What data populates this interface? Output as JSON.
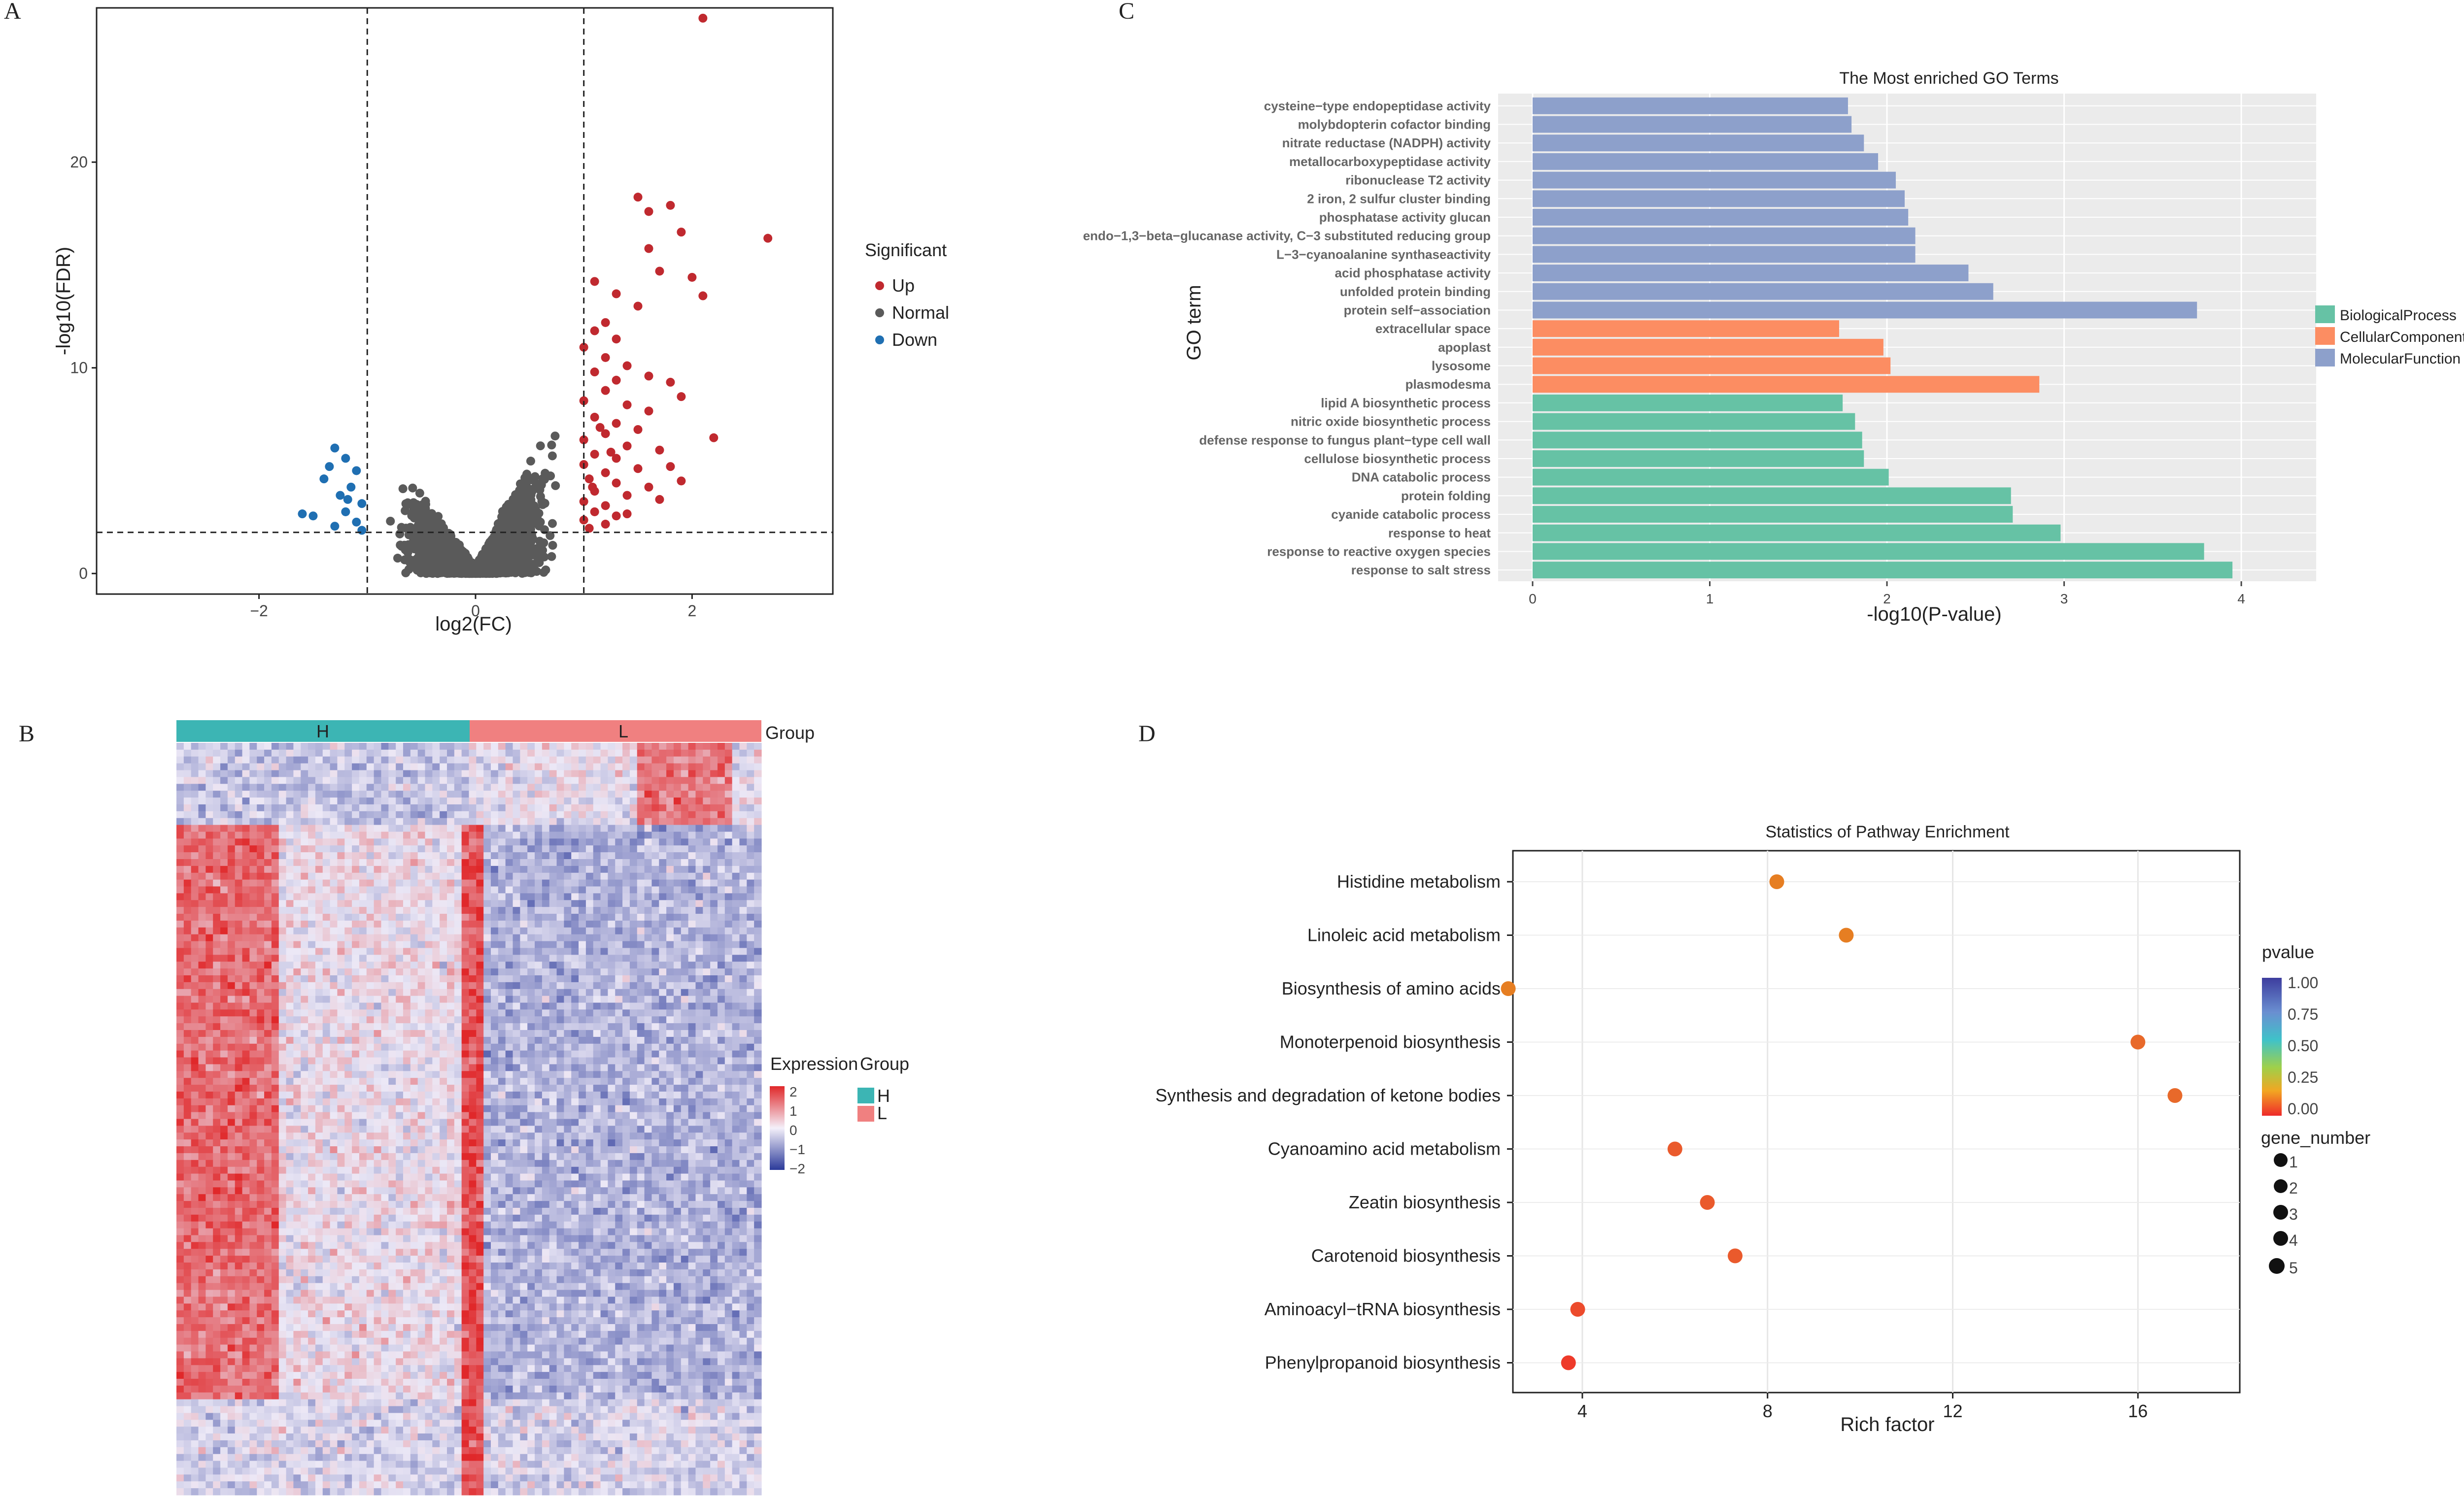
{
  "panels": {
    "a": "A",
    "b": "B",
    "c": "C",
    "d": "D"
  },
  "chart_data": [
    {
      "panel": "A",
      "type": "scatter",
      "title": "",
      "xlabel": "log2(FC)",
      "ylabel": "-log10(FDR)",
      "xlim": [
        -3.5,
        3.3
      ],
      "ylim": [
        -1,
        27.5
      ],
      "xticks": [
        -2,
        0,
        2
      ],
      "yticks": [
        0,
        10,
        20
      ],
      "vlines": [
        -1,
        1
      ],
      "hline": 2,
      "legend": {
        "title": "Significant",
        "position": "right",
        "items": [
          {
            "name": "Up",
            "color": "#c0292f"
          },
          {
            "name": "Normal",
            "color": "#5a5a5a"
          },
          {
            "name": "Down",
            "color": "#1f6fb2"
          }
        ]
      },
      "series": [
        {
          "name": "Up",
          "color": "#c0292f",
          "points": [
            [
              2.1,
              27.0
            ],
            [
              2.7,
              16.3
            ],
            [
              1.5,
              18.3
            ],
            [
              1.6,
              17.6
            ],
            [
              1.8,
              17.9
            ],
            [
              1.9,
              16.6
            ],
            [
              1.6,
              15.8
            ],
            [
              2.0,
              14.4
            ],
            [
              2.1,
              13.5
            ],
            [
              1.7,
              14.7
            ],
            [
              1.1,
              14.2
            ],
            [
              1.3,
              13.6
            ],
            [
              1.5,
              13.0
            ],
            [
              1.2,
              12.2
            ],
            [
              1.1,
              11.8
            ],
            [
              1.3,
              11.4
            ],
            [
              1.0,
              11.0
            ],
            [
              1.2,
              10.5
            ],
            [
              1.4,
              10.1
            ],
            [
              1.1,
              9.8
            ],
            [
              1.3,
              9.4
            ],
            [
              1.6,
              9.6
            ],
            [
              1.8,
              9.3
            ],
            [
              1.9,
              8.6
            ],
            [
              1.2,
              8.9
            ],
            [
              1.0,
              8.4
            ],
            [
              1.4,
              8.2
            ],
            [
              1.6,
              7.9
            ],
            [
              1.1,
              7.6
            ],
            [
              1.3,
              7.3
            ],
            [
              1.5,
              7.0
            ],
            [
              1.2,
              6.8
            ],
            [
              1.0,
              6.5
            ],
            [
              1.4,
              6.2
            ],
            [
              1.7,
              6.0
            ],
            [
              1.1,
              5.8
            ],
            [
              1.3,
              5.6
            ],
            [
              1.0,
              5.3
            ],
            [
              1.5,
              5.1
            ],
            [
              1.2,
              4.9
            ],
            [
              1.05,
              4.6
            ],
            [
              1.3,
              4.4
            ],
            [
              1.6,
              4.2
            ],
            [
              1.1,
              4.0
            ],
            [
              1.4,
              3.8
            ],
            [
              1.0,
              3.5
            ],
            [
              1.2,
              3.3
            ],
            [
              1.7,
              3.6
            ],
            [
              1.1,
              3.0
            ],
            [
              1.3,
              2.8
            ],
            [
              1.0,
              2.6
            ],
            [
              1.2,
              2.4
            ],
            [
              1.05,
              2.2
            ],
            [
              1.4,
              2.9
            ],
            [
              1.9,
              4.5
            ],
            [
              2.2,
              6.6
            ],
            [
              1.8,
              5.2
            ],
            [
              1.15,
              7.1
            ],
            [
              1.25,
              5.9
            ],
            [
              1.08,
              4.2
            ]
          ]
        },
        {
          "name": "Down",
          "color": "#1f6fb2",
          "points": [
            [
              -1.3,
              6.1
            ],
            [
              -1.2,
              5.6
            ],
            [
              -1.1,
              5.0
            ],
            [
              -1.4,
              4.6
            ],
            [
              -1.15,
              4.2
            ],
            [
              -1.25,
              3.8
            ],
            [
              -1.05,
              3.4
            ],
            [
              -1.2,
              3.0
            ],
            [
              -1.5,
              2.8
            ],
            [
              -1.1,
              2.5
            ],
            [
              -1.3,
              2.3
            ],
            [
              -1.6,
              2.9
            ],
            [
              -1.05,
              2.1
            ],
            [
              -1.35,
              5.2
            ],
            [
              -1.18,
              3.6
            ]
          ]
        }
      ]
    },
    {
      "panel": "B",
      "type": "heatmap",
      "legend": {
        "title": "Expression",
        "ticks": [
          "2",
          "1",
          "0",
          "−1",
          "−2"
        ]
      },
      "group_legend": {
        "title": "Group",
        "items": [
          {
            "name": "H",
            "color": "#3cb5b4"
          },
          {
            "name": "L",
            "color": "#f08080"
          }
        ]
      },
      "group_bar": {
        "label": "Group",
        "groups": [
          {
            "name": "H",
            "color": "#3cb5b4"
          },
          {
            "name": "L",
            "color": "#f08080"
          }
        ]
      },
      "color_scale": {
        "low": "#2b3a9a",
        "mid": "#ffffff",
        "high": "#e0282a",
        "range": [
          -2,
          2
        ]
      }
    },
    {
      "panel": "C",
      "type": "bar",
      "orientation": "horizontal",
      "title": "The Most enriched GO Terms",
      "xlabel": "-log10(P-value)",
      "ylabel": "GO term",
      "xlim": [
        0,
        4.2
      ],
      "xticks": [
        0,
        1,
        2,
        3,
        4
      ],
      "legend": {
        "position": "right",
        "items": [
          {
            "name": "BiologicalProcess",
            "color": "#66c2a5"
          },
          {
            "name": "CellularComponent",
            "color": "#fc8d62"
          },
          {
            "name": "MolecularFunction",
            "color": "#8da0cb"
          }
        ]
      },
      "categories": [
        "cysteine−type endopeptidase  activity",
        "molybdopterin cofactor binding",
        "nitrate reductase (NADPH) activity",
        "metallocarboxypeptidase activity",
        "ribonuclease T2 activity",
        "2 iron, 2 sulfur cluster binding",
        "phosphatase activity glucan",
        "endo−1,3−beta−glucanase activity, C−3 substituted  reducing group",
        "L−3−cyanoalanine synthaseactivity",
        "acid phosphatase activity",
        "unfolded protein binding",
        "protein self−association",
        "extracellular space",
        "apoplast",
        "lysosome",
        "plasmodesma",
        "lipid A biosynthetic process",
        "nitric oxide biosynthetic process",
        "defense response to fungus plant−type cell wall",
        "cellulose biosynthetic process",
        "DNA catabolic process",
        "protein folding",
        "cyanide catabolic process",
        "response to heat",
        "response to reactive oxygen  species",
        "response to salt stress"
      ],
      "values": [
        1.78,
        1.8,
        1.87,
        1.95,
        2.05,
        2.1,
        2.12,
        2.16,
        2.16,
        2.46,
        2.6,
        3.75,
        1.73,
        1.98,
        2.02,
        2.86,
        1.75,
        1.82,
        1.86,
        1.87,
        2.01,
        2.7,
        2.71,
        2.98,
        3.79,
        3.95
      ],
      "groups": [
        "MolecularFunction",
        "MolecularFunction",
        "MolecularFunction",
        "MolecularFunction",
        "MolecularFunction",
        "MolecularFunction",
        "MolecularFunction",
        "MolecularFunction",
        "MolecularFunction",
        "MolecularFunction",
        "MolecularFunction",
        "MolecularFunction",
        "CellularComponent",
        "CellularComponent",
        "CellularComponent",
        "CellularComponent",
        "BiologicalProcess",
        "BiologicalProcess",
        "BiologicalProcess",
        "BiologicalProcess",
        "BiologicalProcess",
        "BiologicalProcess",
        "BiologicalProcess",
        "BiologicalProcess",
        "BiologicalProcess",
        "BiologicalProcess"
      ]
    },
    {
      "panel": "D",
      "type": "scatter",
      "title": "Statistics of Pathway Enrichment",
      "xlabel": "Rich factor",
      "ylabel": "",
      "xlim": [
        2.5,
        18.2
      ],
      "xticks": [
        4,
        8,
        12,
        16
      ],
      "categories": [
        "Histidine metabolism",
        "Linoleic acid metabolism",
        "Biosynthesis of amino acids",
        "Monoterpenoid biosynthesis",
        "Synthesis and degradation of ketone bodies",
        "Cyanoamino acid metabolism",
        "Zeatin biosynthesis",
        "Carotenoid biosynthesis",
        "Aminoacyl−tRNA biosynthesis",
        "Phenylpropanoid biosynthesis"
      ],
      "x": [
        8.2,
        9.7,
        2.4,
        16.0,
        16.8,
        6.0,
        6.7,
        7.3,
        3.9,
        3.7
      ],
      "pvalue": [
        0.05,
        0.05,
        0.05,
        0.05,
        0.05,
        0.03,
        0.03,
        0.02,
        0.01,
        0.0
      ],
      "point_colors": [
        "#e67e22",
        "#e67e22",
        "#e67e22",
        "#e8692a",
        "#e8692a",
        "#ea5a2c",
        "#ea5a2c",
        "#ea5a2c",
        "#ec4b2c",
        "#ee3a2a"
      ],
      "pvalue_legend": {
        "title": "pvalue",
        "ticks": [
          "1.00",
          "0.75",
          "0.50",
          "0.25",
          "0.00"
        ]
      },
      "size_legend": {
        "title": "gene_number",
        "values": [
          "1",
          "2",
          "3",
          "4",
          "5"
        ]
      }
    }
  ]
}
